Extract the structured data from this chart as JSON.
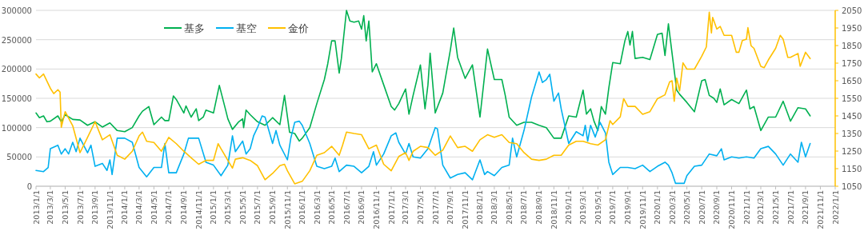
{
  "chart_data": {
    "type": "line",
    "legend": "top",
    "grid": "y",
    "line_style": "solid",
    "ylim": [
      0,
      300000
    ],
    "yticks": [
      0,
      50000,
      100000,
      150000,
      200000,
      250000,
      300000
    ],
    "y2lim": [
      1050,
      2050
    ],
    "y2ticks": [
      1050,
      1150,
      1250,
      1350,
      1450,
      1550,
      1650,
      1750,
      1850,
      1950,
      2050
    ],
    "xlim": [
      "2013-01-01",
      "2022-01-01"
    ],
    "xticks": [
      {
        "value": "2013-01-01",
        "label": "2013/1/1"
      },
      {
        "value": "2013-03-01",
        "label": "2013/3/1"
      },
      {
        "value": "2013-05-01",
        "label": "2013/5/1"
      },
      {
        "value": "2013-07-01",
        "label": "2013/7/1"
      },
      {
        "value": "2013-09-01",
        "label": "2013/9/1"
      },
      {
        "value": "2013-11-01",
        "label": "2013/11/1"
      },
      {
        "value": "2014-01-01",
        "label": "2014/1/1"
      },
      {
        "value": "2014-03-01",
        "label": "2014/3/1"
      },
      {
        "value": "2014-05-01",
        "label": "2014/5/1"
      },
      {
        "value": "2014-07-01",
        "label": "2014/7/1"
      },
      {
        "value": "2014-09-01",
        "label": "2014/9/1"
      },
      {
        "value": "2014-11-01",
        "label": "2014/11/1"
      },
      {
        "value": "2015-01-01",
        "label": "2015/1/1"
      },
      {
        "value": "2015-03-01",
        "label": "2015/3/1"
      },
      {
        "value": "2015-05-01",
        "label": "2015/5/1"
      },
      {
        "value": "2015-07-01",
        "label": "2015/7/1"
      },
      {
        "value": "2015-09-01",
        "label": "2015/9/1"
      },
      {
        "value": "2015-11-01",
        "label": "2015/11/1"
      },
      {
        "value": "2016-01-01",
        "label": "2016/1/1"
      },
      {
        "value": "2016-03-01",
        "label": "2016/3/1"
      },
      {
        "value": "2016-05-01",
        "label": "2016/5/1"
      },
      {
        "value": "2016-07-01",
        "label": "2016/7/1"
      },
      {
        "value": "2016-09-01",
        "label": "2016/9/1"
      },
      {
        "value": "2016-11-01",
        "label": "2016/11/1"
      },
      {
        "value": "2017-01-01",
        "label": "2017/1/1"
      },
      {
        "value": "2017-03-01",
        "label": "2017/3/1"
      },
      {
        "value": "2017-05-01",
        "label": "2017/5/1"
      },
      {
        "value": "2017-07-01",
        "label": "2017/7/1"
      },
      {
        "value": "2017-09-01",
        "label": "2017/9/1"
      },
      {
        "value": "2017-11-01",
        "label": "2017/11/1"
      },
      {
        "value": "2018-01-01",
        "label": "2018/1/1"
      },
      {
        "value": "2018-03-01",
        "label": "2018/3/1"
      },
      {
        "value": "2018-05-01",
        "label": "2018/5/1"
      },
      {
        "value": "2018-07-01",
        "label": "2018/7/1"
      },
      {
        "value": "2018-09-01",
        "label": "2018/9/1"
      },
      {
        "value": "2018-11-01",
        "label": "2018/11/1"
      },
      {
        "value": "2019-01-01",
        "label": "2019/1/1"
      },
      {
        "value": "2019-03-01",
        "label": "2019/3/1"
      },
      {
        "value": "2019-05-01",
        "label": "2019/5/1"
      },
      {
        "value": "2019-07-01",
        "label": "2019/7/1"
      },
      {
        "value": "2019-09-01",
        "label": "2019/9/1"
      },
      {
        "value": "2019-11-01",
        "label": "2019/11/1"
      },
      {
        "value": "2020-01-01",
        "label": "2020/1/1"
      },
      {
        "value": "2020-03-01",
        "label": "2020/3/1"
      },
      {
        "value": "2020-05-01",
        "label": "2020/5/1"
      },
      {
        "value": "2020-07-01",
        "label": "2020/7/1"
      },
      {
        "value": "2020-09-01",
        "label": "2020/9/1"
      },
      {
        "value": "2020-11-01",
        "label": "2020/11/1"
      },
      {
        "value": "2021-01-01",
        "label": "2021/1/1"
      },
      {
        "value": "2021-03-01",
        "label": "2021/3/1"
      },
      {
        "value": "2021-05-01",
        "label": "2021/5/1"
      },
      {
        "value": "2021-07-01",
        "label": "2021/7/1"
      },
      {
        "value": "2021-09-01",
        "label": "2021/9/1"
      },
      {
        "value": "2021-11-01",
        "label": "2021/11/1"
      },
      {
        "value": "2022-01-01",
        "label": "2022/1/1"
      }
    ],
    "series": [
      {
        "name": "基多",
        "color": "#00b050",
        "x": [
          "2013-01-01",
          "2013-01-15",
          "2013-02-01",
          "2013-02-15",
          "2013-03-01",
          "2013-04-01",
          "2013-04-15",
          "2013-05-01",
          "2013-06-01",
          "2013-07-01",
          "2013-08-01",
          "2013-09-01",
          "2013-10-01",
          "2013-11-01",
          "2013-12-01",
          "2014-01-01",
          "2014-02-01",
          "2014-03-01",
          "2014-03-15",
          "2014-04-10",
          "2014-05-01",
          "2014-06-01",
          "2014-06-15",
          "2014-07-01",
          "2014-07-20",
          "2014-08-01",
          "2014-09-01",
          "2014-09-10",
          "2014-10-01",
          "2014-10-22",
          "2014-11-01",
          "2014-11-20",
          "2014-12-01",
          "2015-01-01",
          "2015-01-25",
          "2015-02-20",
          "2015-03-01",
          "2015-03-20",
          "2015-04-15",
          "2015-05-01",
          "2015-05-05",
          "2015-05-15",
          "2015-06-01",
          "2015-07-01",
          "2015-08-01",
          "2015-09-01",
          "2015-10-01",
          "2015-10-20",
          "2015-11-10",
          "2015-12-01",
          "2015-12-20",
          "2016-01-01",
          "2016-02-01",
          "2016-03-01",
          "2016-04-01",
          "2016-04-15",
          "2016-05-01",
          "2016-05-15",
          "2016-06-01",
          "2016-06-10",
          "2016-07-01",
          "2016-07-15",
          "2016-08-01",
          "2016-08-20",
          "2016-09-01",
          "2016-09-10",
          "2016-09-20",
          "2016-10-01",
          "2016-10-15",
          "2016-11-01",
          "2016-12-01",
          "2017-01-01",
          "2017-01-15",
          "2017-02-01",
          "2017-03-01",
          "2017-03-15",
          "2017-04-01",
          "2017-05-01",
          "2017-05-20",
          "2017-06-01",
          "2017-06-10",
          "2017-07-01",
          "2017-08-01",
          "2017-09-01",
          "2017-09-15",
          "2017-10-01",
          "2017-11-01",
          "2017-12-01",
          "2018-01-01",
          "2018-02-01",
          "2018-03-01",
          "2018-04-01",
          "2018-04-15",
          "2018-05-01",
          "2018-06-01",
          "2018-07-01",
          "2018-08-01",
          "2018-09-01",
          "2018-10-01",
          "2018-11-01",
          "2018-12-01",
          "2019-01-01",
          "2019-02-01",
          "2019-03-01",
          "2019-03-15",
          "2019-04-01",
          "2019-04-15",
          "2019-05-01",
          "2019-05-15",
          "2019-06-01",
          "2019-06-15",
          "2019-07-01",
          "2019-08-01",
          "2019-08-20",
          "2019-09-01",
          "2019-09-10",
          "2019-09-20",
          "2019-10-01",
          "2019-11-01",
          "2019-12-01",
          "2020-01-01",
          "2020-01-20",
          "2020-02-01",
          "2020-02-15",
          "2020-03-01",
          "2020-03-20",
          "2020-04-01",
          "2020-05-01",
          "2020-06-01",
          "2020-07-01",
          "2020-07-15",
          "2020-08-01",
          "2020-08-20",
          "2020-09-01",
          "2020-09-15",
          "2020-10-01",
          "2020-11-01",
          "2020-12-01",
          "2021-01-01",
          "2021-01-15",
          "2021-02-01",
          "2021-03-01",
          "2021-04-01",
          "2021-05-01",
          "2021-06-01",
          "2021-07-01",
          "2021-08-01",
          "2021-09-01",
          "2021-09-20"
        ],
        "values": [
          125000,
          117000,
          120000,
          110000,
          111000,
          120000,
          110000,
          122000,
          114000,
          113000,
          104000,
          110000,
          101000,
          108000,
          95000,
          93000,
          100000,
          120000,
          128000,
          136000,
          105000,
          118000,
          112000,
          112000,
          154000,
          148000,
          125000,
          137000,
          118000,
          132000,
          112000,
          118000,
          130000,
          125000,
          172000,
          130000,
          115000,
          97000,
          110000,
          115000,
          100000,
          130000,
          122000,
          110000,
          104000,
          117000,
          105000,
          155000,
          92000,
          90000,
          77000,
          82000,
          100000,
          141000,
          182000,
          209000,
          248000,
          248000,
          193000,
          218000,
          300000,
          282000,
          280000,
          282000,
          268000,
          291000,
          248000,
          282000,
          195000,
          209000,
          173000,
          136000,
          130000,
          141000,
          166000,
          123000,
          155000,
          207000,
          132000,
          173000,
          227000,
          125000,
          159000,
          232000,
          270000,
          220000,
          184000,
          207000,
          118000,
          234000,
          182000,
          182000,
          155000,
          118000,
          104000,
          109000,
          109000,
          104000,
          100000,
          82000,
          82000,
          120000,
          118000,
          164000,
          123000,
          132000,
          111000,
          95000,
          136000,
          123000,
          168000,
          211000,
          209000,
          248000,
          264000,
          241000,
          264000,
          218000,
          220000,
          216000,
          259000,
          261000,
          223000,
          277000,
          227000,
          164000,
          157000,
          143000,
          127000,
          180000,
          182000,
          155000,
          150000,
          143000,
          166000,
          139000,
          148000,
          141000,
          164000,
          132000,
          136000,
          95000,
          118000,
          118000,
          145000,
          111000,
          134000,
          132000,
          120000
        ]
      },
      {
        "name": "基空",
        "color": "#00b0f0",
        "x": [
          "2013-01-01",
          "2013-02-01",
          "2013-02-20",
          "2013-03-01",
          "2013-04-01",
          "2013-04-15",
          "2013-05-01",
          "2013-05-15",
          "2013-06-01",
          "2013-06-15",
          "2013-07-01",
          "2013-08-01",
          "2013-08-15",
          "2013-09-01",
          "2013-10-01",
          "2013-10-20",
          "2013-11-01",
          "2013-11-10",
          "2013-12-01",
          "2014-01-01",
          "2014-02-01",
          "2014-03-01",
          "2014-04-01",
          "2014-05-01",
          "2014-06-01",
          "2014-06-15",
          "2014-07-01",
          "2014-08-01",
          "2014-09-01",
          "2014-09-20",
          "2014-10-01",
          "2014-11-01",
          "2014-12-01",
          "2015-01-01",
          "2015-02-01",
          "2015-03-01",
          "2015-03-20",
          "2015-04-01",
          "2015-05-01",
          "2015-05-15",
          "2015-06-01",
          "2015-06-15",
          "2015-07-01",
          "2015-07-20",
          "2015-08-01",
          "2015-09-01",
          "2015-09-15",
          "2015-10-01",
          "2015-11-01",
          "2015-11-15",
          "2015-12-01",
          "2015-12-20",
          "2016-01-01",
          "2016-02-01",
          "2016-03-01",
          "2016-04-01",
          "2016-05-01",
          "2016-05-15",
          "2016-06-01",
          "2016-07-01",
          "2016-08-01",
          "2016-09-01",
          "2016-10-01",
          "2016-10-20",
          "2016-11-01",
          "2016-12-01",
          "2017-01-01",
          "2017-01-20",
          "2017-02-01",
          "2017-03-01",
          "2017-03-15",
          "2017-04-01",
          "2017-05-01",
          "2017-06-01",
          "2017-07-01",
          "2017-07-10",
          "2017-08-01",
          "2017-09-01",
          "2017-10-01",
          "2017-11-01",
          "2017-12-01",
          "2018-01-01",
          "2018-01-20",
          "2018-02-01",
          "2018-03-01",
          "2018-04-01",
          "2018-05-01",
          "2018-05-15",
          "2018-06-01",
          "2018-07-01",
          "2018-08-01",
          "2018-09-01",
          "2018-09-15",
          "2018-10-01",
          "2018-10-15",
          "2018-11-01",
          "2018-11-20",
          "2018-12-01",
          "2019-01-01",
          "2019-02-01",
          "2019-03-01",
          "2019-03-10",
          "2019-03-20",
          "2019-04-01",
          "2019-04-20",
          "2019-05-10",
          "2019-06-01",
          "2019-06-15",
          "2019-07-01",
          "2019-08-01",
          "2019-09-01",
          "2019-10-01",
          "2019-11-01",
          "2019-12-01",
          "2020-01-01",
          "2020-02-01",
          "2020-02-15",
          "2020-03-01",
          "2020-03-15",
          "2020-04-01",
          "2020-04-20",
          "2020-05-01",
          "2020-06-01",
          "2020-07-01",
          "2020-08-01",
          "2020-09-01",
          "2020-09-20",
          "2020-10-01",
          "2020-11-01",
          "2020-12-01",
          "2021-01-01",
          "2021-02-01",
          "2021-03-01",
          "2021-04-01",
          "2021-05-01",
          "2021-06-01",
          "2021-07-01",
          "2021-08-01",
          "2021-08-15",
          "2021-09-01",
          "2021-09-20"
        ],
        "values": [
          27000,
          25000,
          32000,
          64000,
          70000,
          55000,
          64000,
          55000,
          75000,
          59000,
          82000,
          57000,
          70000,
          34000,
          39000,
          27000,
          45000,
          20000,
          82000,
          82000,
          75000,
          32000,
          16000,
          32000,
          32000,
          73000,
          23000,
          23000,
          55000,
          82000,
          82000,
          82000,
          41000,
          36000,
          18000,
          36000,
          86000,
          59000,
          77000,
          55000,
          64000,
          86000,
          100000,
          120000,
          118000,
          73000,
          95000,
          70000,
          45000,
          82000,
          109000,
          111000,
          104000,
          73000,
          34000,
          30000,
          34000,
          48000,
          25000,
          36000,
          34000,
          23000,
          34000,
          59000,
          36000,
          55000,
          86000,
          91000,
          75000,
          55000,
          73000,
          50000,
          48000,
          64000,
          100000,
          98000,
          36000,
          14000,
          20000,
          23000,
          11000,
          45000,
          20000,
          25000,
          18000,
          32000,
          36000,
          82000,
          50000,
          95000,
          152000,
          195000,
          177000,
          182000,
          191000,
          145000,
          159000,
          132000,
          73000,
          93000,
          86000,
          104000,
          77000,
          104000,
          84000,
          109000,
          91000,
          41000,
          20000,
          32000,
          32000,
          30000,
          36000,
          25000,
          34000,
          41000,
          36000,
          23000,
          5000,
          5000,
          5000,
          18000,
          34000,
          36000,
          55000,
          52000,
          64000,
          45000,
          50000,
          48000,
          50000,
          48000,
          64000,
          68000,
          55000,
          36000,
          55000,
          41000,
          75000,
          50000,
          73000
        ]
      },
      {
        "name": "金价",
        "color": "#ffc000",
        "axis": "y2",
        "x": [
          "2013-01-01",
          "2013-01-15",
          "2013-02-01",
          "2013-03-01",
          "2013-03-15",
          "2013-04-01",
          "2013-04-10",
          "2013-04-15",
          "2013-05-01",
          "2013-06-01",
          "2013-07-01",
          "2013-08-01",
          "2013-09-01",
          "2013-10-01",
          "2013-11-01",
          "2013-12-01",
          "2014-01-01",
          "2014-02-01",
          "2014-03-01",
          "2014-03-15",
          "2014-04-01",
          "2014-05-01",
          "2014-06-01",
          "2014-07-01",
          "2014-08-01",
          "2014-09-01",
          "2014-10-01",
          "2014-11-01",
          "2014-12-01",
          "2015-01-01",
          "2015-01-20",
          "2015-02-01",
          "2015-03-01",
          "2015-03-20",
          "2015-04-01",
          "2015-05-01",
          "2015-06-01",
          "2015-07-01",
          "2015-08-01",
          "2015-09-01",
          "2015-10-01",
          "2015-10-20",
          "2015-11-01",
          "2015-12-01",
          "2016-01-01",
          "2016-02-01",
          "2016-03-01",
          "2016-04-01",
          "2016-05-01",
          "2016-06-01",
          "2016-06-15",
          "2016-07-01",
          "2016-08-01",
          "2016-09-01",
          "2016-10-01",
          "2016-11-01",
          "2016-12-01",
          "2017-01-01",
          "2017-02-01",
          "2017-03-01",
          "2017-03-15",
          "2017-04-01",
          "2017-05-01",
          "2017-06-01",
          "2017-07-01",
          "2017-08-01",
          "2017-09-01",
          "2017-10-01",
          "2017-11-01",
          "2017-12-01",
          "2018-01-01",
          "2018-02-01",
          "2018-03-01",
          "2018-04-01",
          "2018-05-01",
          "2018-06-01",
          "2018-07-01",
          "2018-08-01",
          "2018-09-01",
          "2018-10-01",
          "2018-11-01",
          "2018-12-01",
          "2019-01-01",
          "2019-02-01",
          "2019-03-01",
          "2019-04-01",
          "2019-05-01",
          "2019-06-01",
          "2019-06-20",
          "2019-07-01",
          "2019-08-01",
          "2019-08-15",
          "2019-09-01",
          "2019-10-01",
          "2019-11-01",
          "2019-12-01",
          "2020-01-01",
          "2020-02-01",
          "2020-02-20",
          "2020-03-01",
          "2020-03-10",
          "2020-03-20",
          "2020-04-01",
          "2020-04-15",
          "2020-05-01",
          "2020-06-01",
          "2020-07-01",
          "2020-07-20",
          "2020-08-01",
          "2020-08-10",
          "2020-08-15",
          "2020-09-01",
          "2020-09-15",
          "2020-10-01",
          "2020-11-01",
          "2020-11-20",
          "2020-12-01",
          "2020-12-15",
          "2021-01-01",
          "2021-01-07",
          "2021-01-20",
          "2021-02-01",
          "2021-03-01",
          "2021-03-15",
          "2021-04-01",
          "2021-05-01",
          "2021-05-20",
          "2021-06-01",
          "2021-06-20",
          "2021-07-01",
          "2021-08-01",
          "2021-08-10",
          "2021-09-01",
          "2021-09-20"
        ],
        "values": [
          1688,
          1666,
          1688,
          1607,
          1577,
          1599,
          1585,
          1385,
          1474,
          1394,
          1241,
          1328,
          1417,
          1314,
          1343,
          1226,
          1204,
          1249,
          1336,
          1358,
          1306,
          1299,
          1249,
          1328,
          1292,
          1249,
          1212,
          1175,
          1197,
          1197,
          1292,
          1263,
          1197,
          1153,
          1204,
          1212,
          1197,
          1167,
          1087,
          1123,
          1167,
          1175,
          1138,
          1064,
          1078,
          1138,
          1226,
          1241,
          1277,
          1226,
          1284,
          1358,
          1350,
          1343,
          1263,
          1284,
          1175,
          1138,
          1219,
          1241,
          1197,
          1249,
          1277,
          1270,
          1226,
          1255,
          1336,
          1270,
          1277,
          1249,
          1314,
          1343,
          1328,
          1343,
          1299,
          1292,
          1241,
          1204,
          1197,
          1204,
          1226,
          1226,
          1284,
          1306,
          1306,
          1292,
          1284,
          1314,
          1423,
          1401,
          1445,
          1548,
          1504,
          1504,
          1459,
          1474,
          1548,
          1570,
          1643,
          1650,
          1533,
          1665,
          1592,
          1752,
          1716,
          1716,
          1789,
          1842,
          2040,
          1922,
          2010,
          1944,
          1959,
          1908,
          1908,
          1812,
          1812,
          1878,
          1886,
          1952,
          1849,
          1834,
          1732,
          1724,
          1768,
          1834,
          1908,
          1886,
          1783,
          1783,
          1805,
          1732,
          1812,
          1776
        ]
      }
    ]
  }
}
